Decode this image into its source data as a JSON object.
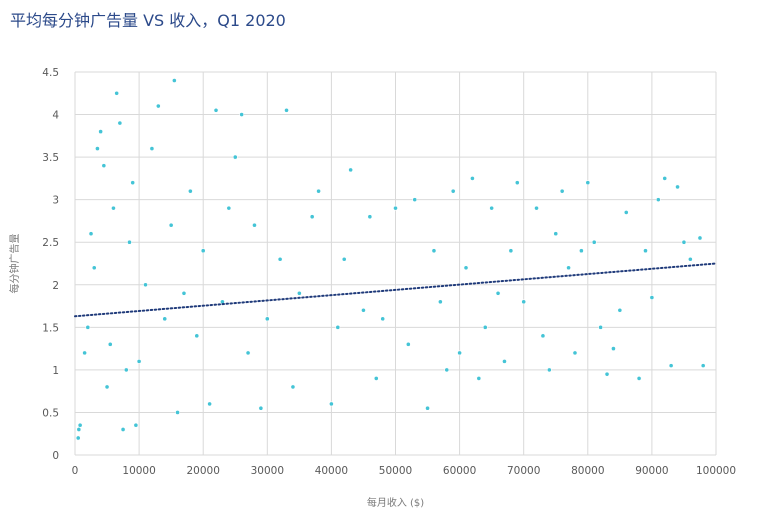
{
  "chart_data": {
    "type": "scatter",
    "title": "平均每分钟广告量 VS 收入，Q1 2020",
    "xlabel": "每月收入 ($)",
    "ylabel": "每分钟广告量",
    "xlim": [
      0,
      100000
    ],
    "ylim": [
      0,
      4.5
    ],
    "x_ticks": [
      "0",
      "10000",
      "20000",
      "30000",
      "40000",
      "50000",
      "60000",
      "70000",
      "80000",
      "90000",
      "100000"
    ],
    "y_ticks": [
      "0",
      "0.5",
      "1",
      "1.5",
      "2",
      "2.5",
      "3",
      "3.5",
      "4",
      "4.5"
    ],
    "grid": true,
    "trendline": {
      "type": "linear",
      "x": [
        0,
        100000
      ],
      "y": [
        1.63,
        2.25
      ]
    },
    "colors": {
      "points": "#44c4d6",
      "trendline": "#1f3a7a",
      "grid": "#d9d9d9",
      "title": "#2c4a8a"
    },
    "series": [
      {
        "values": [
          [
            500,
            0.2
          ],
          [
            600,
            0.3
          ],
          [
            800,
            0.35
          ],
          [
            1500,
            1.2
          ],
          [
            2000,
            1.5
          ],
          [
            2500,
            2.6
          ],
          [
            3000,
            2.2
          ],
          [
            3500,
            3.6
          ],
          [
            4000,
            3.8
          ],
          [
            4500,
            3.4
          ],
          [
            5000,
            0.8
          ],
          [
            5500,
            1.3
          ],
          [
            6000,
            2.9
          ],
          [
            6500,
            4.25
          ],
          [
            7000,
            3.9
          ],
          [
            7500,
            0.3
          ],
          [
            8000,
            1.0
          ],
          [
            8500,
            2.5
          ],
          [
            9000,
            3.2
          ],
          [
            9500,
            0.35
          ],
          [
            10000,
            1.1
          ],
          [
            11000,
            2.0
          ],
          [
            12000,
            3.6
          ],
          [
            13000,
            4.1
          ],
          [
            14000,
            1.6
          ],
          [
            15000,
            2.7
          ],
          [
            15500,
            4.4
          ],
          [
            16000,
            0.5
          ],
          [
            17000,
            1.9
          ],
          [
            18000,
            3.1
          ],
          [
            19000,
            1.4
          ],
          [
            20000,
            2.4
          ],
          [
            21000,
            0.6
          ],
          [
            22000,
            4.05
          ],
          [
            23000,
            1.8
          ],
          [
            24000,
            2.9
          ],
          [
            25000,
            3.5
          ],
          [
            26000,
            4.0
          ],
          [
            27000,
            1.2
          ],
          [
            28000,
            2.7
          ],
          [
            29000,
            0.55
          ],
          [
            30000,
            1.6
          ],
          [
            32000,
            2.3
          ],
          [
            33000,
            4.05
          ],
          [
            34000,
            0.8
          ],
          [
            35000,
            1.9
          ],
          [
            37000,
            2.8
          ],
          [
            38000,
            3.1
          ],
          [
            40000,
            0.6
          ],
          [
            41000,
            1.5
          ],
          [
            42000,
            2.3
          ],
          [
            43000,
            3.35
          ],
          [
            45000,
            1.7
          ],
          [
            46000,
            2.8
          ],
          [
            47000,
            0.9
          ],
          [
            48000,
            1.6
          ],
          [
            50000,
            2.9
          ],
          [
            52000,
            1.3
          ],
          [
            53000,
            3.0
          ],
          [
            55000,
            0.55
          ],
          [
            56000,
            2.4
          ],
          [
            57000,
            1.8
          ],
          [
            58000,
            1.0
          ],
          [
            59000,
            3.1
          ],
          [
            60000,
            1.2
          ],
          [
            61000,
            2.2
          ],
          [
            62000,
            3.25
          ],
          [
            63000,
            0.9
          ],
          [
            64000,
            1.5
          ],
          [
            65000,
            2.9
          ],
          [
            66000,
            1.9
          ],
          [
            67000,
            1.1
          ],
          [
            68000,
            2.4
          ],
          [
            69000,
            3.2
          ],
          [
            70000,
            1.8
          ],
          [
            72000,
            2.9
          ],
          [
            73000,
            1.4
          ],
          [
            74000,
            1.0
          ],
          [
            75000,
            2.6
          ],
          [
            76000,
            3.1
          ],
          [
            77000,
            2.2
          ],
          [
            78000,
            1.2
          ],
          [
            79000,
            2.4
          ],
          [
            80000,
            3.2
          ],
          [
            81000,
            2.5
          ],
          [
            82000,
            1.5
          ],
          [
            83000,
            0.95
          ],
          [
            84000,
            1.25
          ],
          [
            85000,
            1.7
          ],
          [
            86000,
            2.85
          ],
          [
            88000,
            0.9
          ],
          [
            89000,
            2.4
          ],
          [
            90000,
            1.85
          ],
          [
            91000,
            3.0
          ],
          [
            92000,
            3.25
          ],
          [
            93000,
            1.05
          ],
          [
            94000,
            3.15
          ],
          [
            95000,
            2.5
          ],
          [
            96000,
            2.3
          ],
          [
            97500,
            2.55
          ],
          [
            98000,
            1.05
          ]
        ]
      }
    ]
  }
}
